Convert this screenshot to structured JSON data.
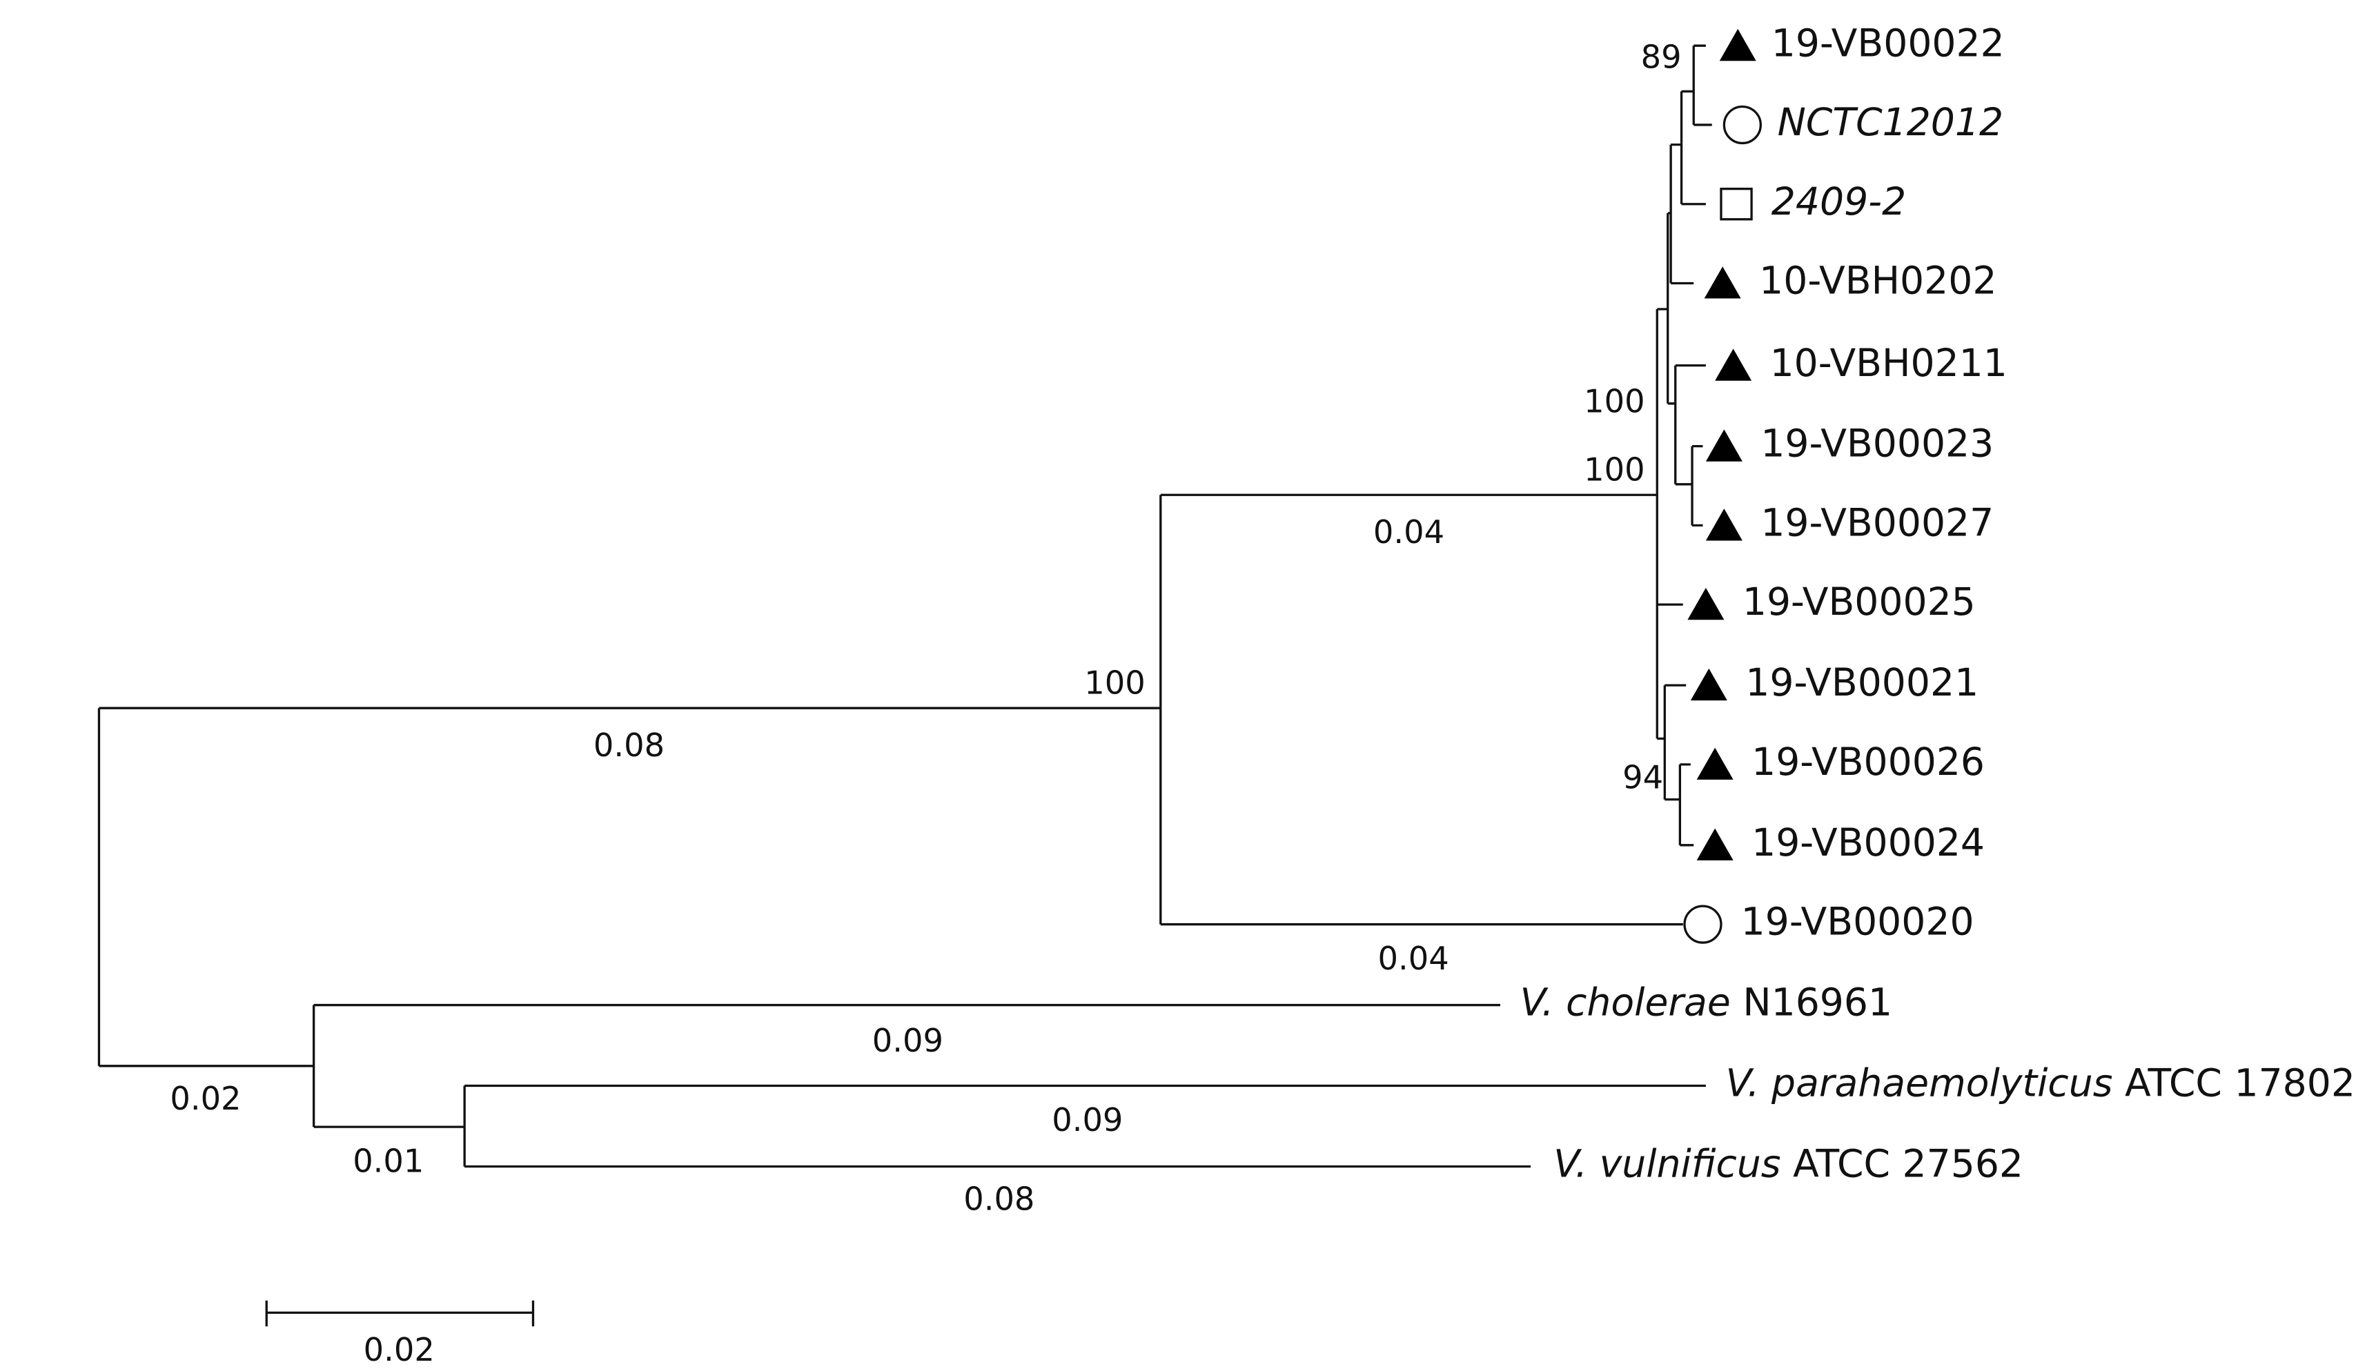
{
  "leaves": [
    {
      "label": "19-VB00022"
    },
    {
      "label": "NCTC12012"
    },
    {
      "label": "2409-2"
    },
    {
      "label": "10-VBH0202"
    },
    {
      "label": "10-VBH0211"
    },
    {
      "label": "19-VB00023"
    },
    {
      "label": "19-VB00027"
    },
    {
      "label": "19-VB00025"
    },
    {
      "label": "19-VB00021"
    },
    {
      "label": "19-VB00026"
    },
    {
      "label": "19-VB00024"
    },
    {
      "label": "19-VB00020"
    },
    {
      "species": "V. cholerae",
      "strain": "N16961"
    },
    {
      "species": "V. parahaemolyticus",
      "strain": "ATCC 17802"
    },
    {
      "species": "V. vulnificus",
      "strain": "ATCC 27562"
    }
  ],
  "bootstrap": [
    89,
    100,
    100,
    100,
    94
  ],
  "branch_lengths": [
    0.08,
    0.04,
    0.04,
    0.02,
    0.09,
    0.01,
    0.09,
    0.08
  ],
  "scale_bar": 0.02
}
